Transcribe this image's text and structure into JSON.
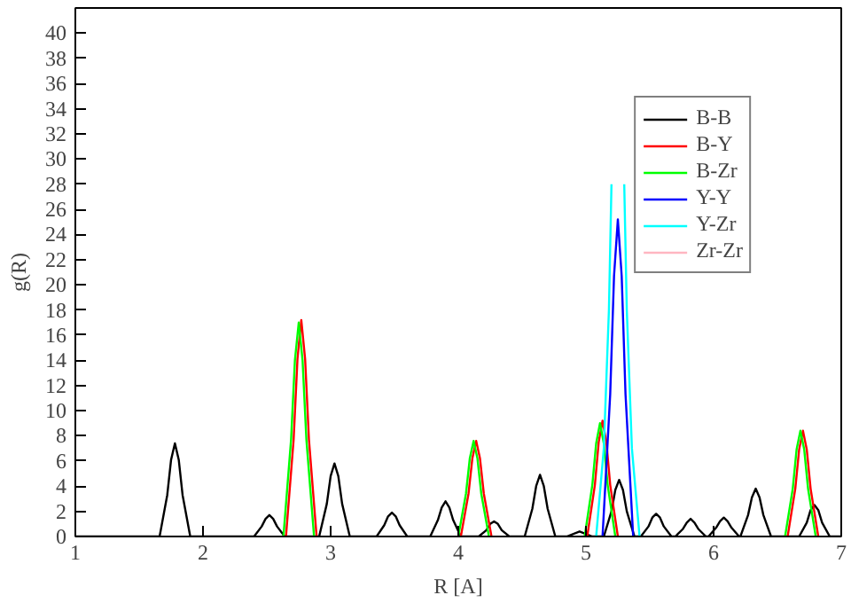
{
  "chart_data": {
    "type": "line",
    "xlabel": "R [A]",
    "ylabel": "g(R)",
    "xlim": [
      1,
      7
    ],
    "xticks": [
      1,
      2,
      3,
      4,
      5,
      6,
      7
    ],
    "ylim": [
      0,
      42
    ],
    "yticks": [
      0,
      2,
      4,
      6,
      8,
      10,
      12,
      14,
      16,
      18,
      20,
      22,
      24,
      26,
      28,
      30,
      32,
      34,
      36,
      38,
      40
    ],
    "grid": false,
    "legend": "top right",
    "marker": "none",
    "line_style": "solid",
    "series": [
      {
        "name": "B-B",
        "color": "#000000",
        "x": [
          1,
          1.66,
          1.72,
          1.75,
          1.78,
          1.81,
          1.84,
          1.9,
          2.4,
          2.46,
          2.49,
          2.52,
          2.55,
          2.58,
          2.64,
          2.91,
          2.97,
          3.0,
          3.03,
          3.06,
          3.09,
          3.15,
          3.36,
          3.42,
          3.45,
          3.48,
          3.51,
          3.54,
          3.6,
          3.78,
          3.84,
          3.87,
          3.9,
          3.93,
          3.96,
          4.02,
          4.16,
          4.22,
          4.25,
          4.28,
          4.31,
          4.34,
          4.4,
          4.52,
          4.58,
          4.61,
          4.64,
          4.67,
          4.7,
          4.76,
          4.85,
          4.95,
          5.05,
          5.14,
          5.2,
          5.23,
          5.26,
          5.29,
          5.32,
          5.38,
          5.43,
          5.49,
          5.52,
          5.55,
          5.58,
          5.61,
          5.67,
          5.7,
          5.76,
          5.79,
          5.82,
          5.85,
          5.88,
          5.94,
          5.96,
          6.02,
          6.05,
          6.08,
          6.11,
          6.14,
          6.2,
          6.21,
          6.27,
          6.3,
          6.33,
          6.36,
          6.39,
          6.45,
          6.67,
          6.73,
          6.76,
          6.79,
          6.82,
          6.85,
          6.91,
          7
        ],
        "values": [
          0,
          0,
          3.3,
          6.1,
          7.4,
          6.1,
          3.3,
          0,
          0,
          0.8,
          1.4,
          1.7,
          1.4,
          0.8,
          0,
          0,
          2.6,
          4.8,
          5.8,
          4.8,
          2.6,
          0,
          0,
          0.9,
          1.6,
          1.9,
          1.6,
          0.9,
          0,
          0,
          1.3,
          2.3,
          2.8,
          2.3,
          1.3,
          0,
          0,
          0.5,
          1.0,
          1.2,
          1.0,
          0.5,
          0,
          0,
          2.2,
          4.0,
          4.9,
          4.0,
          2.2,
          0,
          0,
          0.4,
          0,
          0,
          2.0,
          3.7,
          4.5,
          3.7,
          2.0,
          0,
          0,
          0.8,
          1.5,
          1.8,
          1.5,
          0.8,
          0,
          0,
          0.6,
          1.1,
          1.4,
          1.1,
          0.6,
          0,
          0,
          0.7,
          1.2,
          1.5,
          1.2,
          0.7,
          0,
          0,
          1.7,
          3.1,
          3.8,
          3.1,
          1.7,
          0,
          0,
          1.1,
          2.1,
          2.5,
          2.1,
          1.1,
          0,
          0
        ]
      },
      {
        "name": "B-Y",
        "color": "#ff0000",
        "x": [
          2.65,
          2.71,
          2.74,
          2.77,
          2.8,
          2.83,
          2.89,
          3.5,
          4.02,
          4.08,
          4.11,
          4.14,
          4.17,
          4.2,
          4.26,
          4.6,
          5.01,
          5.07,
          5.1,
          5.13,
          5.16,
          5.19,
          5.25,
          6.0,
          6.58,
          6.64,
          6.67,
          6.7,
          6.73,
          6.76,
          6.82
        ],
        "values": [
          0,
          7.7,
          14.1,
          17.2,
          14.1,
          7.7,
          0,
          null,
          0,
          3.4,
          6.2,
          7.6,
          6.2,
          3.4,
          0,
          null,
          0,
          4.1,
          7.5,
          9.2,
          7.5,
          4.1,
          0,
          null,
          0,
          3.8,
          6.9,
          8.4,
          6.9,
          3.8,
          0
        ]
      },
      {
        "name": "B-Zr",
        "color": "#00ff00",
        "x": [
          2.63,
          2.69,
          2.72,
          2.75,
          2.78,
          2.81,
          2.87,
          3.5,
          4.0,
          4.06,
          4.09,
          4.12,
          4.15,
          4.18,
          4.24,
          4.6,
          4.99,
          5.05,
          5.08,
          5.11,
          5.14,
          5.17,
          5.23,
          6.0,
          6.56,
          6.62,
          6.65,
          6.68,
          6.71,
          6.74,
          6.8
        ],
        "values": [
          0,
          7.7,
          14.0,
          17.0,
          14.0,
          7.7,
          0,
          null,
          0,
          3.4,
          6.2,
          7.6,
          6.2,
          3.4,
          0,
          null,
          0,
          4.1,
          7.4,
          9.0,
          7.4,
          4.1,
          0,
          null,
          0,
          3.8,
          6.9,
          8.4,
          6.9,
          3.8,
          0
        ]
      },
      {
        "name": "Y-Y",
        "color": "#0000ff",
        "x": [
          5.13,
          5.19,
          5.22,
          5.25,
          5.28,
          5.31,
          5.37
        ],
        "values": [
          0,
          11.3,
          20.7,
          25.2,
          20.7,
          11.3,
          0
        ]
      },
      {
        "name": "Y-Zr",
        "color": "#00ffff",
        "x": [
          5.08,
          5.14,
          5.18,
          5.2,
          5.25,
          5.3,
          5.32,
          5.36,
          5.42
        ],
        "values": [
          0,
          7,
          18,
          28,
          null,
          28,
          18,
          7,
          0
        ]
      },
      {
        "name": "Zr-Zr",
        "color": "#ffb6c1"
      }
    ]
  }
}
